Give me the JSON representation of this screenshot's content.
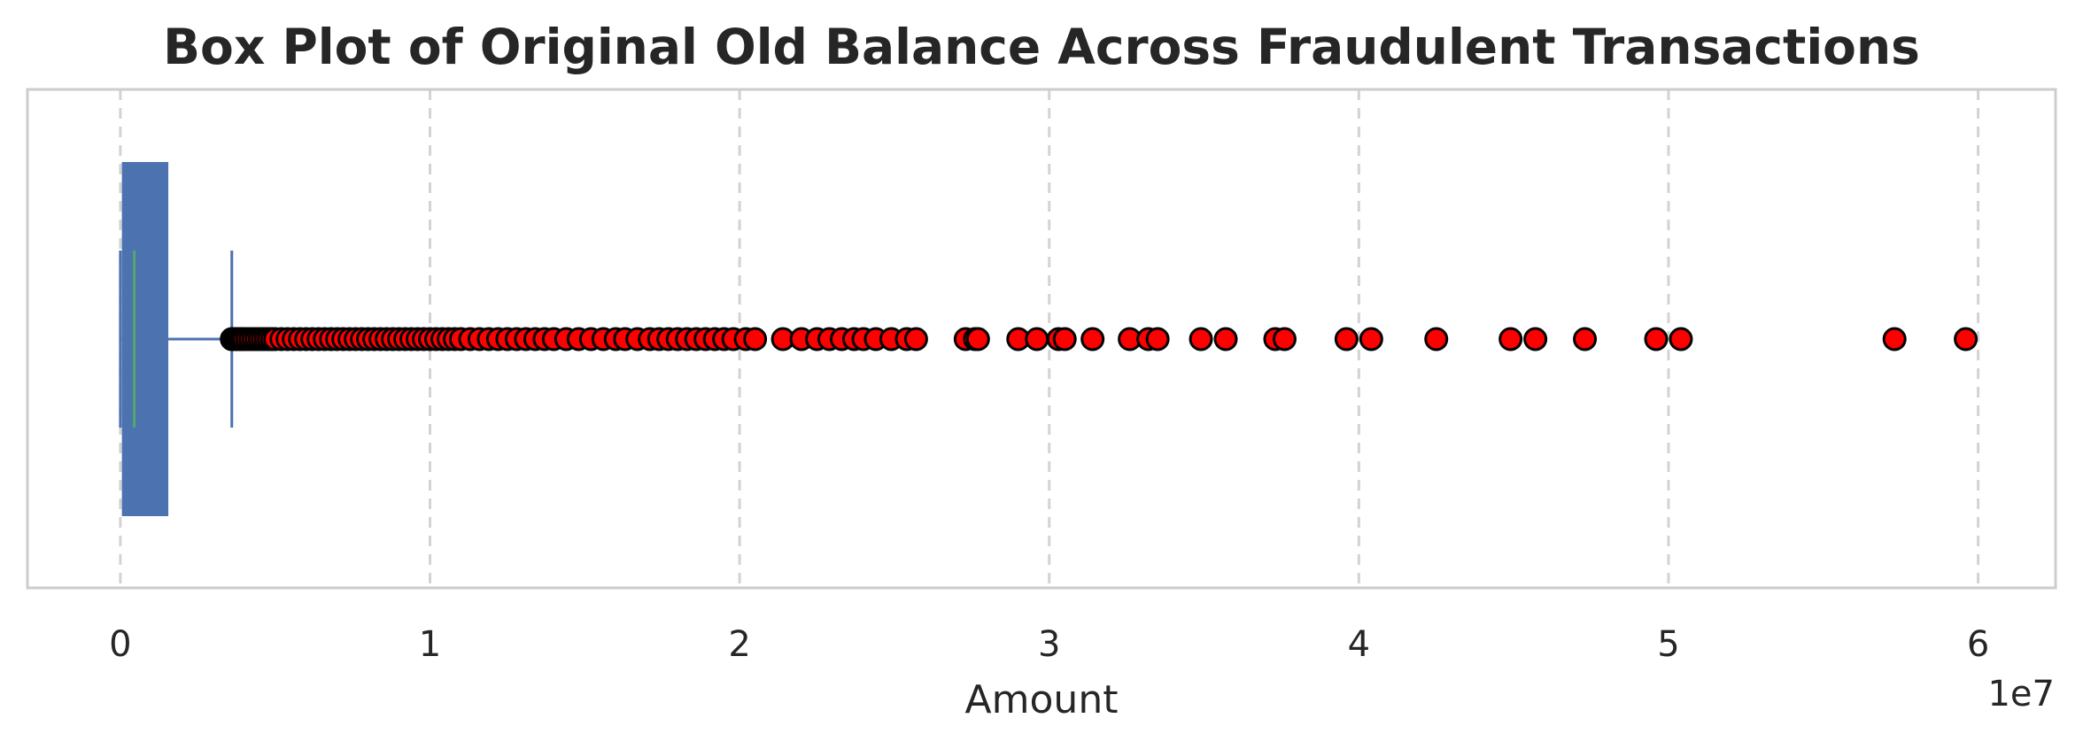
{
  "chart_data": {
    "type": "box",
    "orientation": "horizontal",
    "title": "Box Plot of Original Old Balance Across Fraudulent Transactions",
    "xlabel": "Amount",
    "x_offset_label": "1e7",
    "xlim": [
      -3000000,
      62500000
    ],
    "x_ticks": [
      0,
      10000000,
      20000000,
      30000000,
      40000000,
      50000000,
      60000000
    ],
    "x_tick_labels": [
      "0",
      "1",
      "2",
      "3",
      "4",
      "5",
      "6"
    ],
    "grid": "vertical dashed",
    "box": {
      "q1": 50000,
      "median": 450000,
      "q3": 1550000,
      "whisker_low": 0,
      "whisker_high": 3600000
    },
    "outliers": [
      3600000,
      3650000,
      3700000,
      3750000,
      3800000,
      3850000,
      3900000,
      3950000,
      4000000,
      4100000,
      4200000,
      4300000,
      4400000,
      4500000,
      4600000,
      4700000,
      4800000,
      4900000,
      5000000,
      5200000,
      5400000,
      5600000,
      5800000,
      6000000,
      6200000,
      6400000,
      6600000,
      6800000,
      7000000,
      7200000,
      7400000,
      7600000,
      7800000,
      8000000,
      8200000,
      8400000,
      8600000,
      8800000,
      9000000,
      9200000,
      9400000,
      9600000,
      9800000,
      10000000,
      10200000,
      10400000,
      10600000,
      10800000,
      11000000,
      11300000,
      11600000,
      11900000,
      12200000,
      12500000,
      12800000,
      13100000,
      13400000,
      13700000,
      14000000,
      14400000,
      14800000,
      15200000,
      15600000,
      16000000,
      16300000,
      16700000,
      17100000,
      17400000,
      17700000,
      18000000,
      18300000,
      18600000,
      18900000,
      19200000,
      19500000,
      19800000,
      20200000,
      20500000,
      21400000,
      22000000,
      22500000,
      22900000,
      23300000,
      23700000,
      24000000,
      24400000,
      24900000,
      25400000,
      25700000,
      27300000,
      27600000,
      27700000,
      29000000,
      29600000,
      30300000,
      30500000,
      31400000,
      32600000,
      33200000,
      33500000,
      34900000,
      35700000,
      37300000,
      37600000,
      39600000,
      40400000,
      42500000,
      44900000,
      45700000,
      47300000,
      49600000,
      50400000,
      57300000,
      59600000
    ],
    "colors": {
      "box": "#4c72b0",
      "median": "#55a868",
      "whisker": "#4c72b0",
      "outlier_fill": "#ff0000",
      "outlier_edge": "#000000",
      "grid": "#d3d3d3",
      "frame": "#cccccc",
      "text": "#262626"
    }
  }
}
